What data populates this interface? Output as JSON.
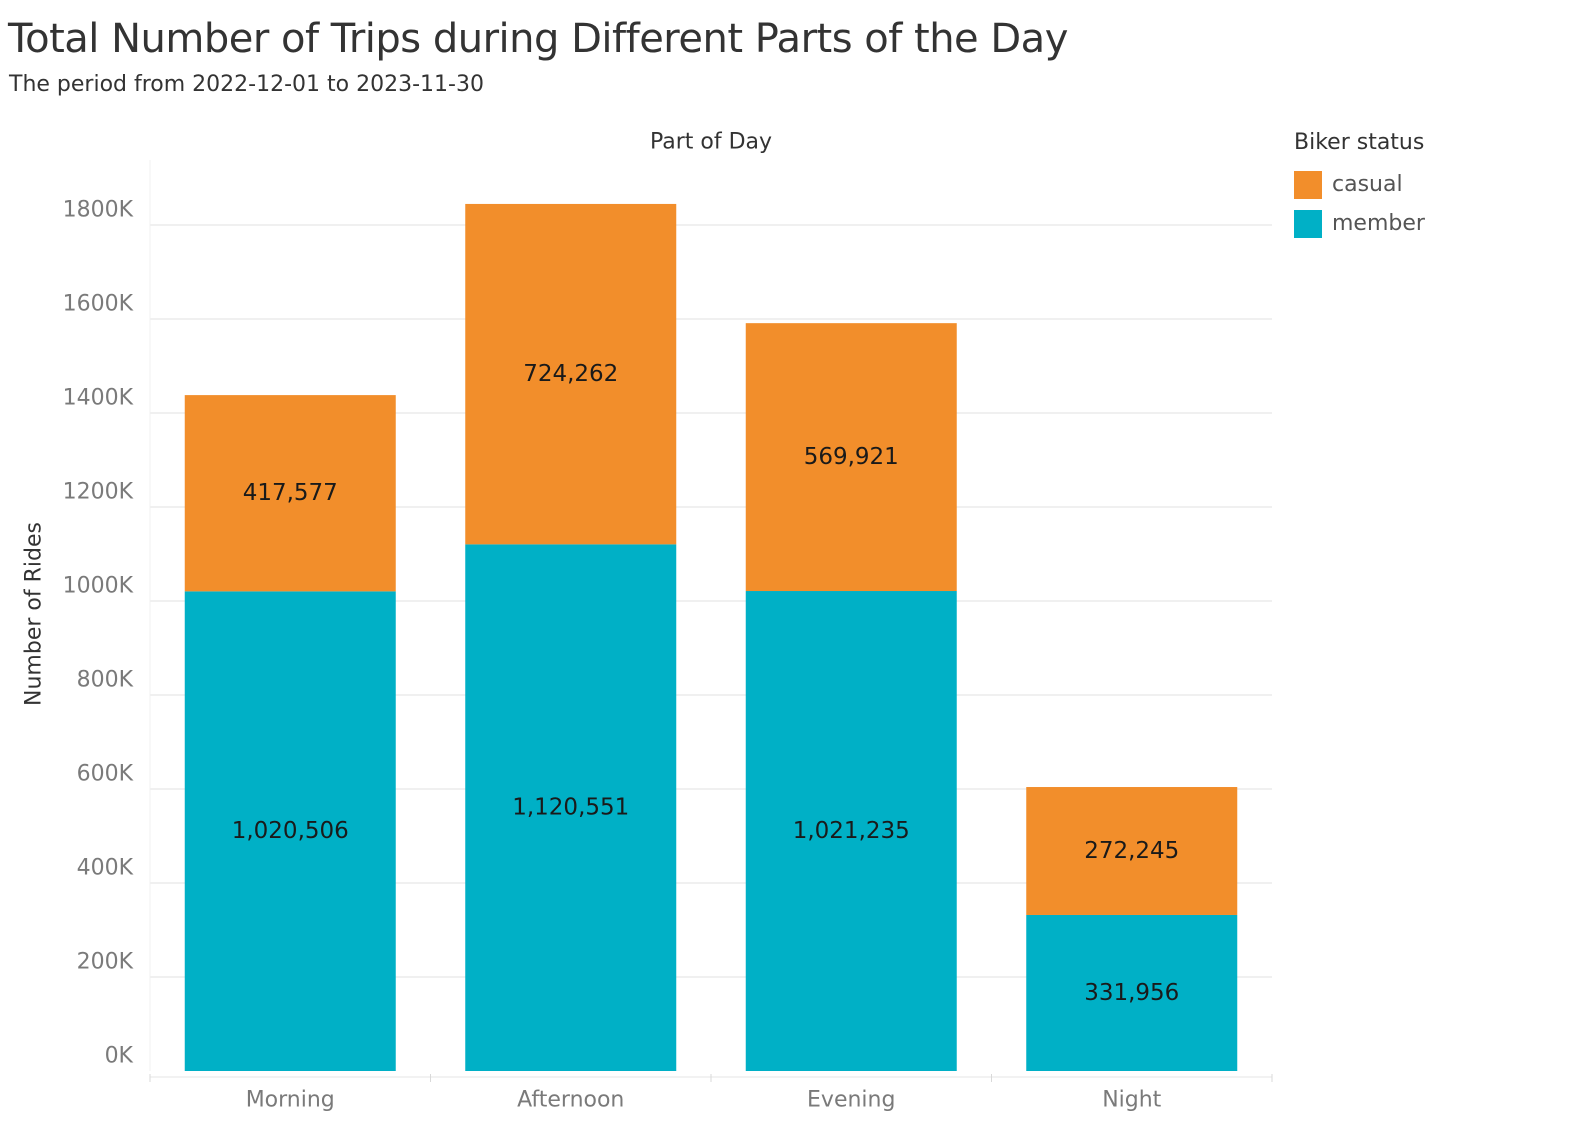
{
  "title": "Total Number of Trips during Different Parts of the Day",
  "subtitle": "The period from 2022-12-01 to 2023-11-30",
  "chart_data": {
    "type": "bar",
    "stacked": true,
    "title": "Total Number of Trips during Different Parts of the Day",
    "subtitle": "The period from 2022-12-01 to 2023-11-30",
    "xlabel": "Part of Day",
    "ylabel": "Number of Rides",
    "categories": [
      "Morning",
      "Afternoon",
      "Evening",
      "Night"
    ],
    "series": [
      {
        "name": "member",
        "color": "#00B0C6",
        "values": [
          1020506,
          1120551,
          1021235,
          331956
        ],
        "labels": [
          "1,020,506",
          "1,120,551",
          "1,021,235",
          "331,956"
        ]
      },
      {
        "name": "casual",
        "color": "#F28E2B",
        "values": [
          417577,
          724262,
          569921,
          272245
        ],
        "labels": [
          "417,577",
          "724,262",
          "569,921",
          "272,245"
        ]
      }
    ],
    "ylim": [
      0,
      1900000
    ],
    "yticks": [
      0,
      200000,
      400000,
      600000,
      800000,
      1000000,
      1200000,
      1400000,
      1600000,
      1800000
    ],
    "ytick_labels": [
      "0K",
      "200K",
      "400K",
      "600K",
      "800K",
      "1000K",
      "1200K",
      "1400K",
      "1600K",
      "1800K"
    ],
    "grid": true,
    "legend_position": "right"
  },
  "legend": {
    "title": "Biker status",
    "items": [
      {
        "label": "casual",
        "color": "#F28E2B"
      },
      {
        "label": "member",
        "color": "#00B0C6"
      }
    ]
  }
}
